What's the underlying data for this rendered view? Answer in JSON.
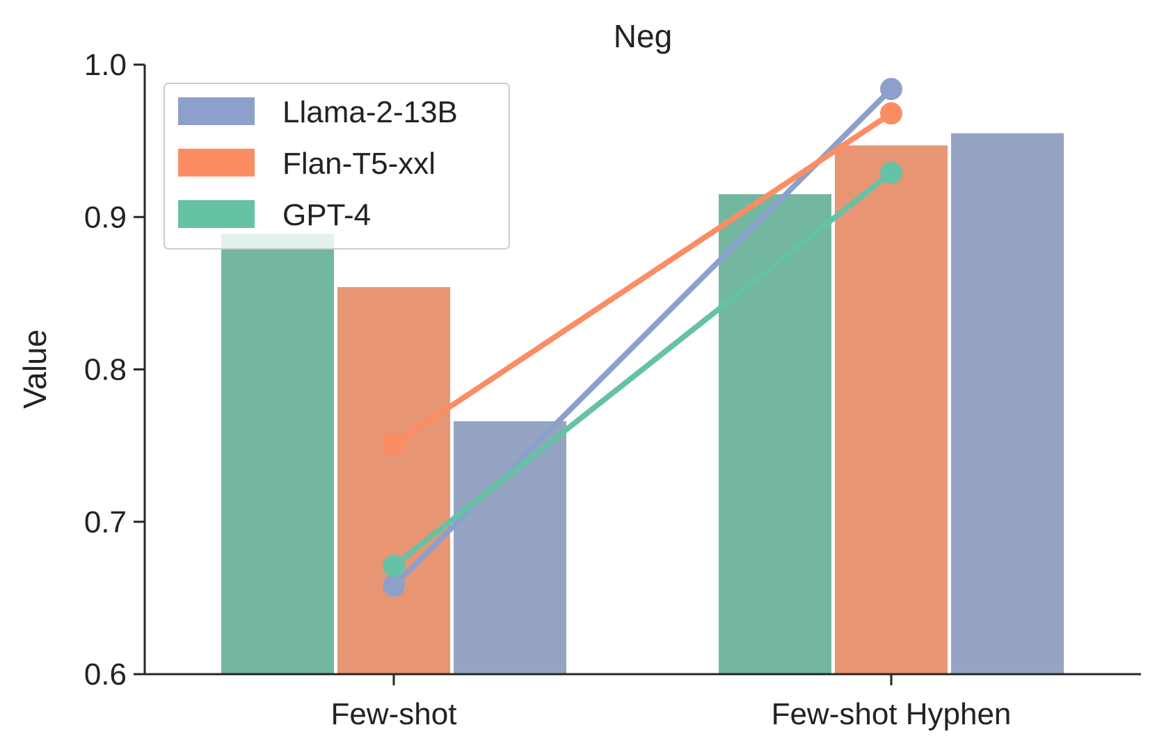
{
  "chart_data": {
    "type": "bar",
    "title": "Neg",
    "xlabel": "",
    "ylabel": "Value",
    "ylim": [
      0.6,
      1.0
    ],
    "yticks": [
      "0.6",
      "0.7",
      "0.8",
      "0.9",
      "1.0"
    ],
    "categories": [
      "Few-shot",
      "Few-shot Hyphen"
    ],
    "grid": false,
    "legend_position": "top-left",
    "bar_series": [
      {
        "key": "GPT-4",
        "color": "#73b7a0",
        "values": [
          0.889,
          0.915
        ]
      },
      {
        "key": "Flan-T5-xxl",
        "color": "#e89574",
        "values": [
          0.854,
          0.947
        ]
      },
      {
        "key": "Llama-2-13B",
        "color": "#95a4c3",
        "values": [
          0.766,
          0.955
        ]
      }
    ],
    "series": [
      {
        "name": "Llama-2-13B",
        "color": "#8da0cb",
        "values": [
          0.658,
          0.984
        ]
      },
      {
        "name": "Flan-T5-xxl",
        "color": "#fc8d62",
        "values": [
          0.751,
          0.968
        ]
      },
      {
        "name": "GPT-4",
        "color": "#66c2a5",
        "values": [
          0.671,
          0.929
        ]
      }
    ]
  }
}
